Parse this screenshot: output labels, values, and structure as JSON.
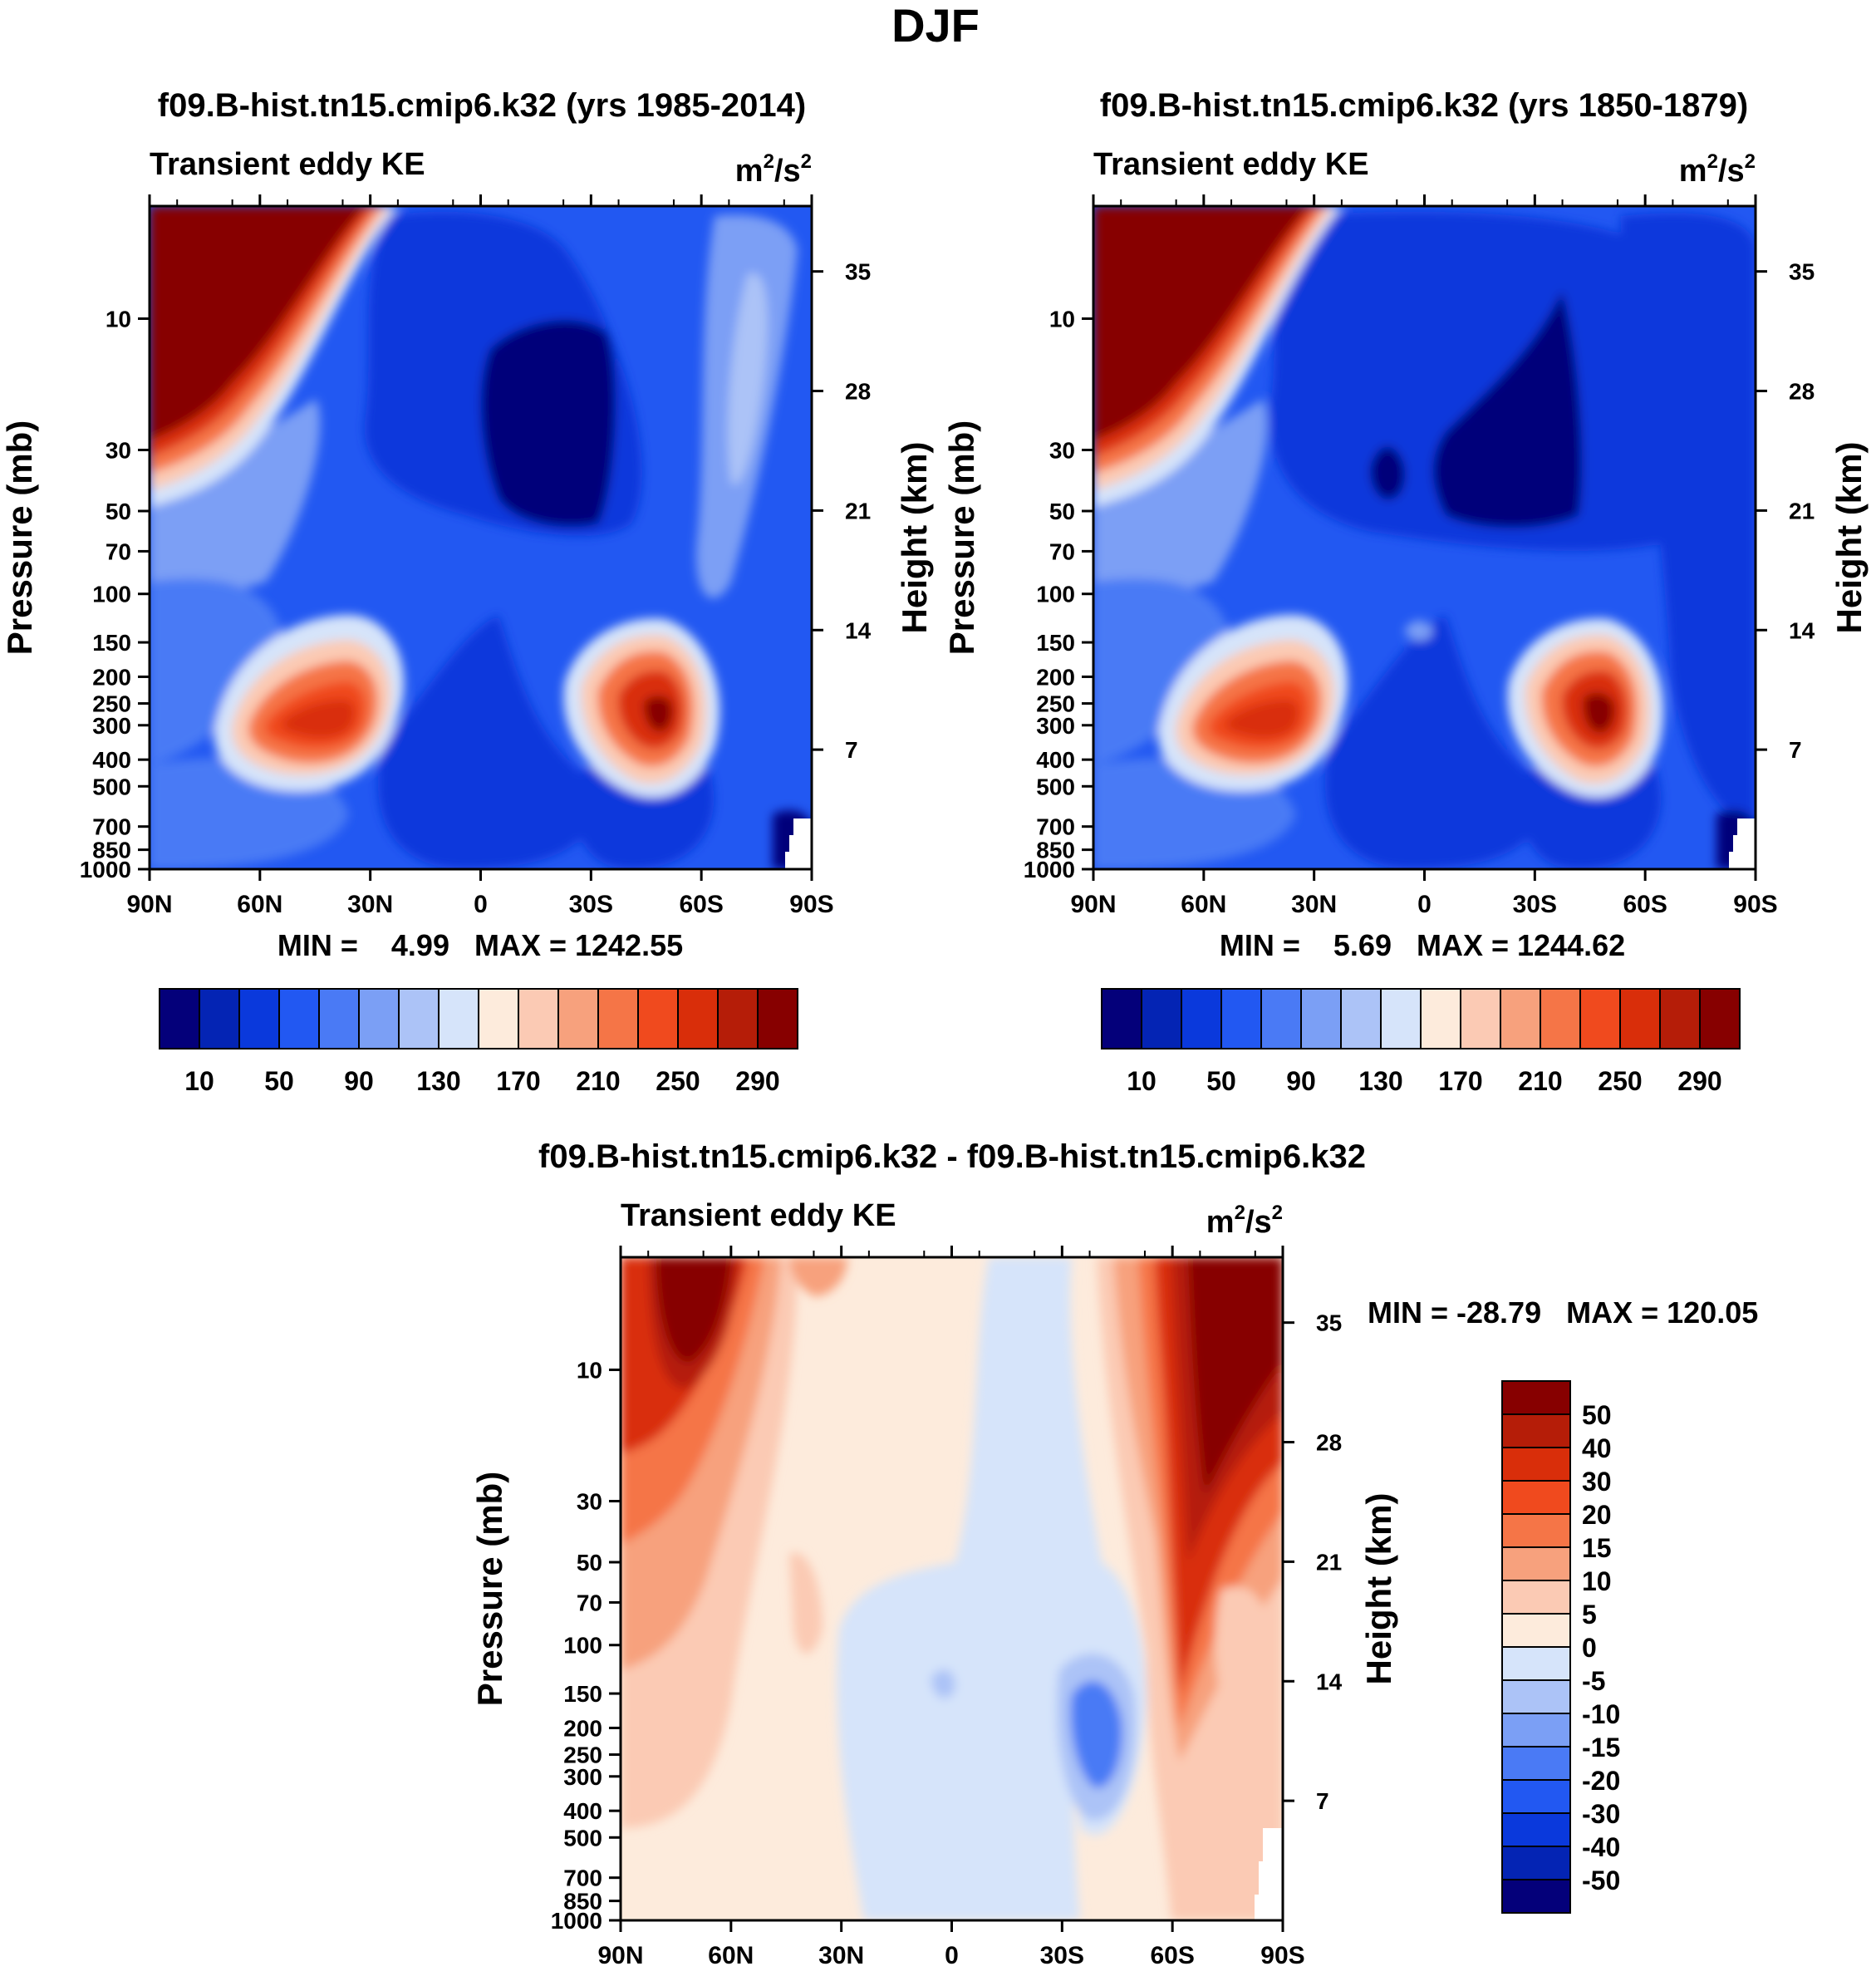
{
  "figure": {
    "title": "DJF"
  },
  "colors": {
    "abs_levels": [
      "#04007a",
      "#0424b4",
      "#0a39dc",
      "#2258f2",
      "#4a7af5",
      "#7b9ff5",
      "#acc3f7",
      "#d6e4fa",
      "#fdebdc",
      "#fbcab4",
      "#f7a17d",
      "#f57547",
      "#f04a1e",
      "#d92e0a",
      "#b51d08",
      "#870000"
    ],
    "diff_levels": [
      "#04007a",
      "#0424b4",
      "#0a39dc",
      "#2258f2",
      "#4a7af5",
      "#7b9ff5",
      "#acc3f7",
      "#d6e4fa",
      "#fdebdc",
      "#fbcab4",
      "#f7a17d",
      "#f57547",
      "#f04a1e",
      "#d92e0a",
      "#b51d08",
      "#870000"
    ]
  },
  "chart_data": [
    {
      "type": "heatmap",
      "title": "f09.B-hist.tn15.cmip6.k32 (yrs 1985-2014)",
      "subtitle_left": "Transient eddy KE",
      "units_base": "m",
      "units_mid": "/s",
      "units_sup": "2",
      "ylabel": "Pressure (mb)",
      "ylabel_right": "Height (km)",
      "x_ticks": [
        "90N",
        "60N",
        "30N",
        "0",
        "30S",
        "60S",
        "90S"
      ],
      "x_range": [
        90,
        -90
      ],
      "y_ticks": [
        "10",
        "30",
        "50",
        "70",
        "100",
        "150",
        "200",
        "250",
        "300",
        "400",
        "500",
        "700",
        "850",
        "1000"
      ],
      "y_ticks_right": [
        "35",
        "28",
        "21",
        "14",
        "7"
      ],
      "stats_label": "MIN =    4.99   MAX = 1242.55",
      "colorbar_labels": [
        "10",
        "50",
        "90",
        "130",
        "170",
        "210",
        "250",
        "290"
      ],
      "levels": [
        10,
        30,
        50,
        70,
        90,
        110,
        130,
        150,
        170,
        190,
        210,
        230,
        250,
        270,
        290
      ]
    },
    {
      "type": "heatmap",
      "title": "f09.B-hist.tn15.cmip6.k32 (yrs 1850-1879)",
      "subtitle_left": "Transient eddy KE",
      "units_base": "m",
      "units_mid": "/s",
      "units_sup": "2",
      "ylabel": "Pressure (mb)",
      "ylabel_right": "Height (km)",
      "x_ticks": [
        "90N",
        "60N",
        "30N",
        "0",
        "30S",
        "60S",
        "90S"
      ],
      "x_range": [
        90,
        -90
      ],
      "y_ticks": [
        "10",
        "30",
        "50",
        "70",
        "100",
        "150",
        "200",
        "250",
        "300",
        "400",
        "500",
        "700",
        "850",
        "1000"
      ],
      "y_ticks_right": [
        "35",
        "28",
        "21",
        "14",
        "7"
      ],
      "stats_label": "MIN =    5.69   MAX = 1244.62",
      "colorbar_labels": [
        "10",
        "50",
        "90",
        "130",
        "170",
        "210",
        "250",
        "290"
      ],
      "levels": [
        10,
        30,
        50,
        70,
        90,
        110,
        130,
        150,
        170,
        190,
        210,
        230,
        250,
        270,
        290
      ]
    },
    {
      "type": "heatmap",
      "title": "f09.B-hist.tn15.cmip6.k32 - f09.B-hist.tn15.cmip6.k32",
      "subtitle_left": "Transient eddy KE",
      "units_base": "m",
      "units_mid": "/s",
      "units_sup": "2",
      "ylabel": "Pressure (mb)",
      "ylabel_right": "Height (km)",
      "x_ticks": [
        "90N",
        "60N",
        "30N",
        "0",
        "30S",
        "60S",
        "90S"
      ],
      "x_range": [
        90,
        -90
      ],
      "y_ticks": [
        "10",
        "30",
        "50",
        "70",
        "100",
        "150",
        "200",
        "250",
        "300",
        "400",
        "500",
        "700",
        "850",
        "1000"
      ],
      "y_ticks_right": [
        "35",
        "28",
        "21",
        "14",
        "7"
      ],
      "stats_label": "MIN = -28.79   MAX = 120.05",
      "colorbar_labels": [
        "50",
        "40",
        "30",
        "20",
        "15",
        "10",
        "5",
        "0",
        "-5",
        "-10",
        "-15",
        "-20",
        "-30",
        "-40",
        "-50"
      ],
      "levels": [
        -50,
        -40,
        -30,
        -20,
        -15,
        -10,
        -5,
        0,
        5,
        10,
        15,
        20,
        30,
        40,
        50
      ]
    }
  ]
}
